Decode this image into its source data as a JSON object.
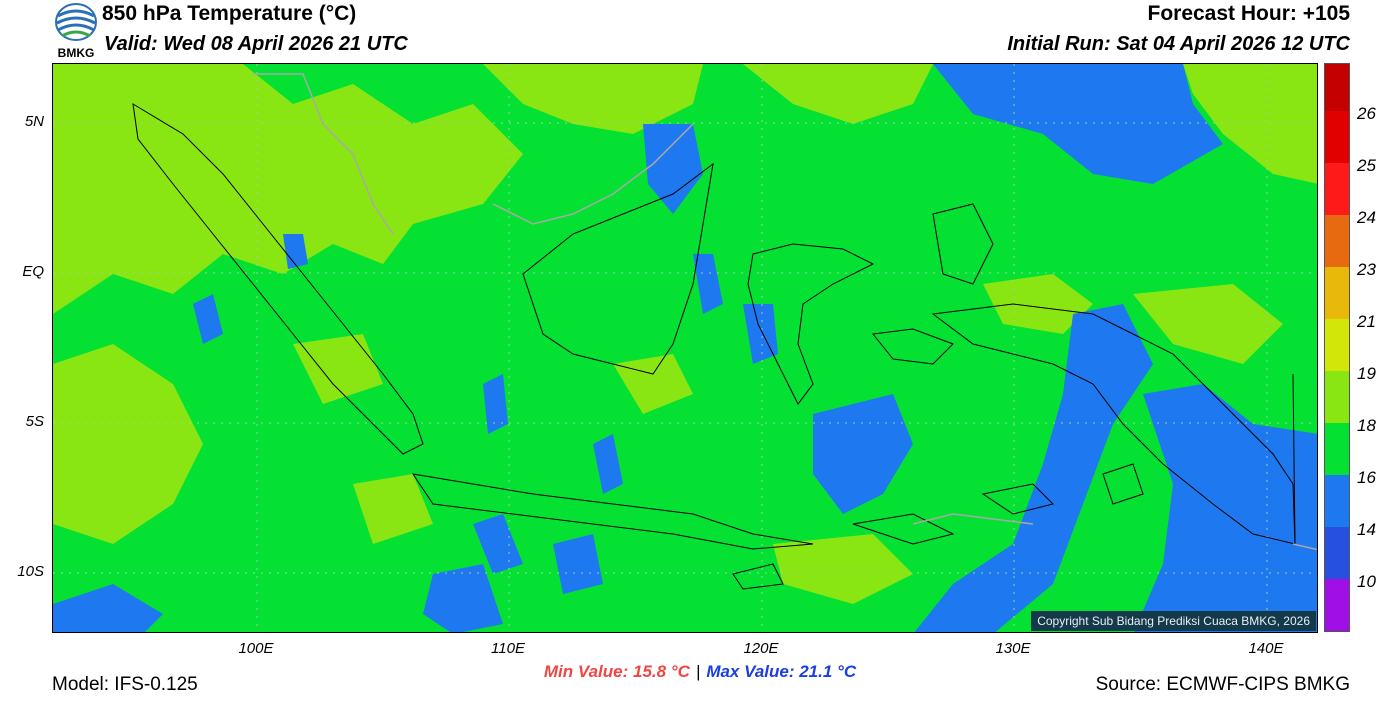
{
  "header": {
    "title": "850 hPa Temperature (°C)",
    "valid": "Valid: Wed 08 April 2026 21 UTC",
    "forecast_hour": "Forecast Hour: +105",
    "initial_run": "Initial Run: Sat 04 April 2026 12 UTC"
  },
  "logo": {
    "text": "BMKG"
  },
  "axes": {
    "lat_labels": [
      "5N",
      "EQ",
      "5S",
      "10S"
    ],
    "lon_labels": [
      "100E",
      "110E",
      "120E",
      "130E",
      "140E"
    ]
  },
  "colorbar": {
    "labels": [
      "26",
      "25",
      "24",
      "23",
      "21",
      "19",
      "18",
      "16",
      "14",
      "10"
    ],
    "colors": [
      "#c40000",
      "#e00000",
      "#ff1a1a",
      "#e86a10",
      "#e8b80a",
      "#d2e60a",
      "#8ae612",
      "#05e132",
      "#1e78f0",
      "#2850e0",
      "#a010e6",
      "#a00550"
    ]
  },
  "stats": {
    "min": "Min Value: 15.8 °C",
    "separator": "|",
    "max": "Max Value: 21.1 °C"
  },
  "footer": {
    "model": "Model: IFS-0.125",
    "source": "Source: ECMWF-CIPS BMKG",
    "copyright": "Copyright Sub Bidang Prediksi Cuaca BMKG, 2026"
  },
  "map_colors": {
    "background": "#05e132",
    "warm": "#8ae612",
    "cool": "#1e78f0"
  }
}
